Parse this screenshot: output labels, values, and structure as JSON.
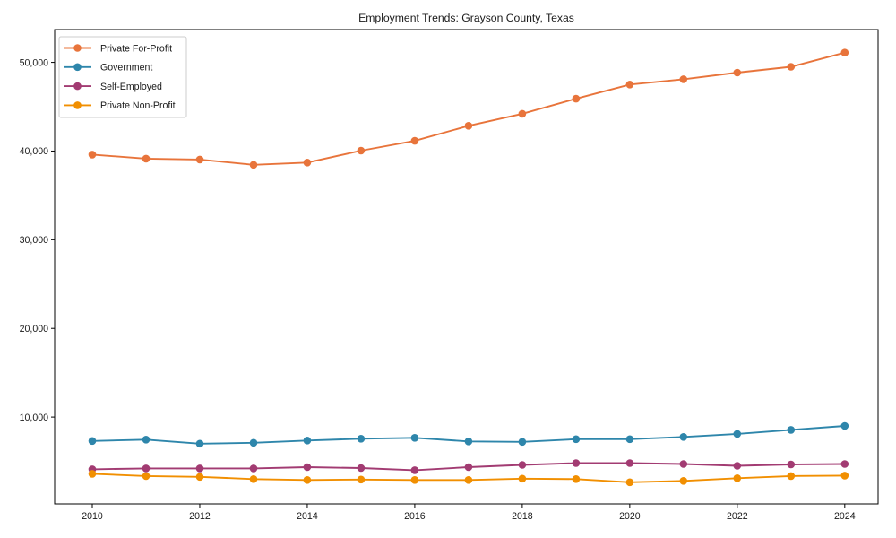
{
  "background": "#ffffff",
  "text_color": "#1a1a1a",
  "frame_color": "#000000",
  "legend_border_color": "#cccccc",
  "chart_data": {
    "type": "line",
    "title": "Employment Trends: Grayson County, Texas",
    "xlabel": "",
    "ylabel": "",
    "grid": false,
    "legend_position": "upper-left",
    "x": [
      2010,
      2011,
      2012,
      2013,
      2014,
      2015,
      2016,
      2017,
      2018,
      2019,
      2020,
      2021,
      2022,
      2023,
      2024
    ],
    "series": [
      {
        "name": "Private For-Profit",
        "color": "#e8743b",
        "values": [
          39600,
          39150,
          39050,
          38450,
          38700,
          40050,
          41150,
          42850,
          44200,
          45900,
          47500,
          48100,
          48850,
          49500,
          51100
        ]
      },
      {
        "name": "Government",
        "color": "#2e86ab",
        "values": [
          7300,
          7450,
          7000,
          7100,
          7350,
          7550,
          7650,
          7250,
          7200,
          7500,
          7500,
          7750,
          8100,
          8550,
          9000
        ]
      },
      {
        "name": "Self-Employed",
        "color": "#a23b72",
        "values": [
          4100,
          4200,
          4200,
          4200,
          4350,
          4250,
          4000,
          4350,
          4600,
          4800,
          4800,
          4700,
          4500,
          4650,
          4700
        ]
      },
      {
        "name": "Private Non-Profit",
        "color": "#f18f01",
        "values": [
          3600,
          3350,
          3250,
          3000,
          2900,
          2950,
          2900,
          2900,
          3050,
          3000,
          2650,
          2800,
          3100,
          3350,
          3400
        ]
      }
    ],
    "xticks": [
      2010,
      2012,
      2014,
      2016,
      2018,
      2020,
      2022,
      2024
    ],
    "yticks": [
      10000,
      20000,
      30000,
      40000,
      50000
    ],
    "xlim": [
      2009.3,
      2024.62
    ],
    "ylim": [
      200,
      53700
    ]
  }
}
